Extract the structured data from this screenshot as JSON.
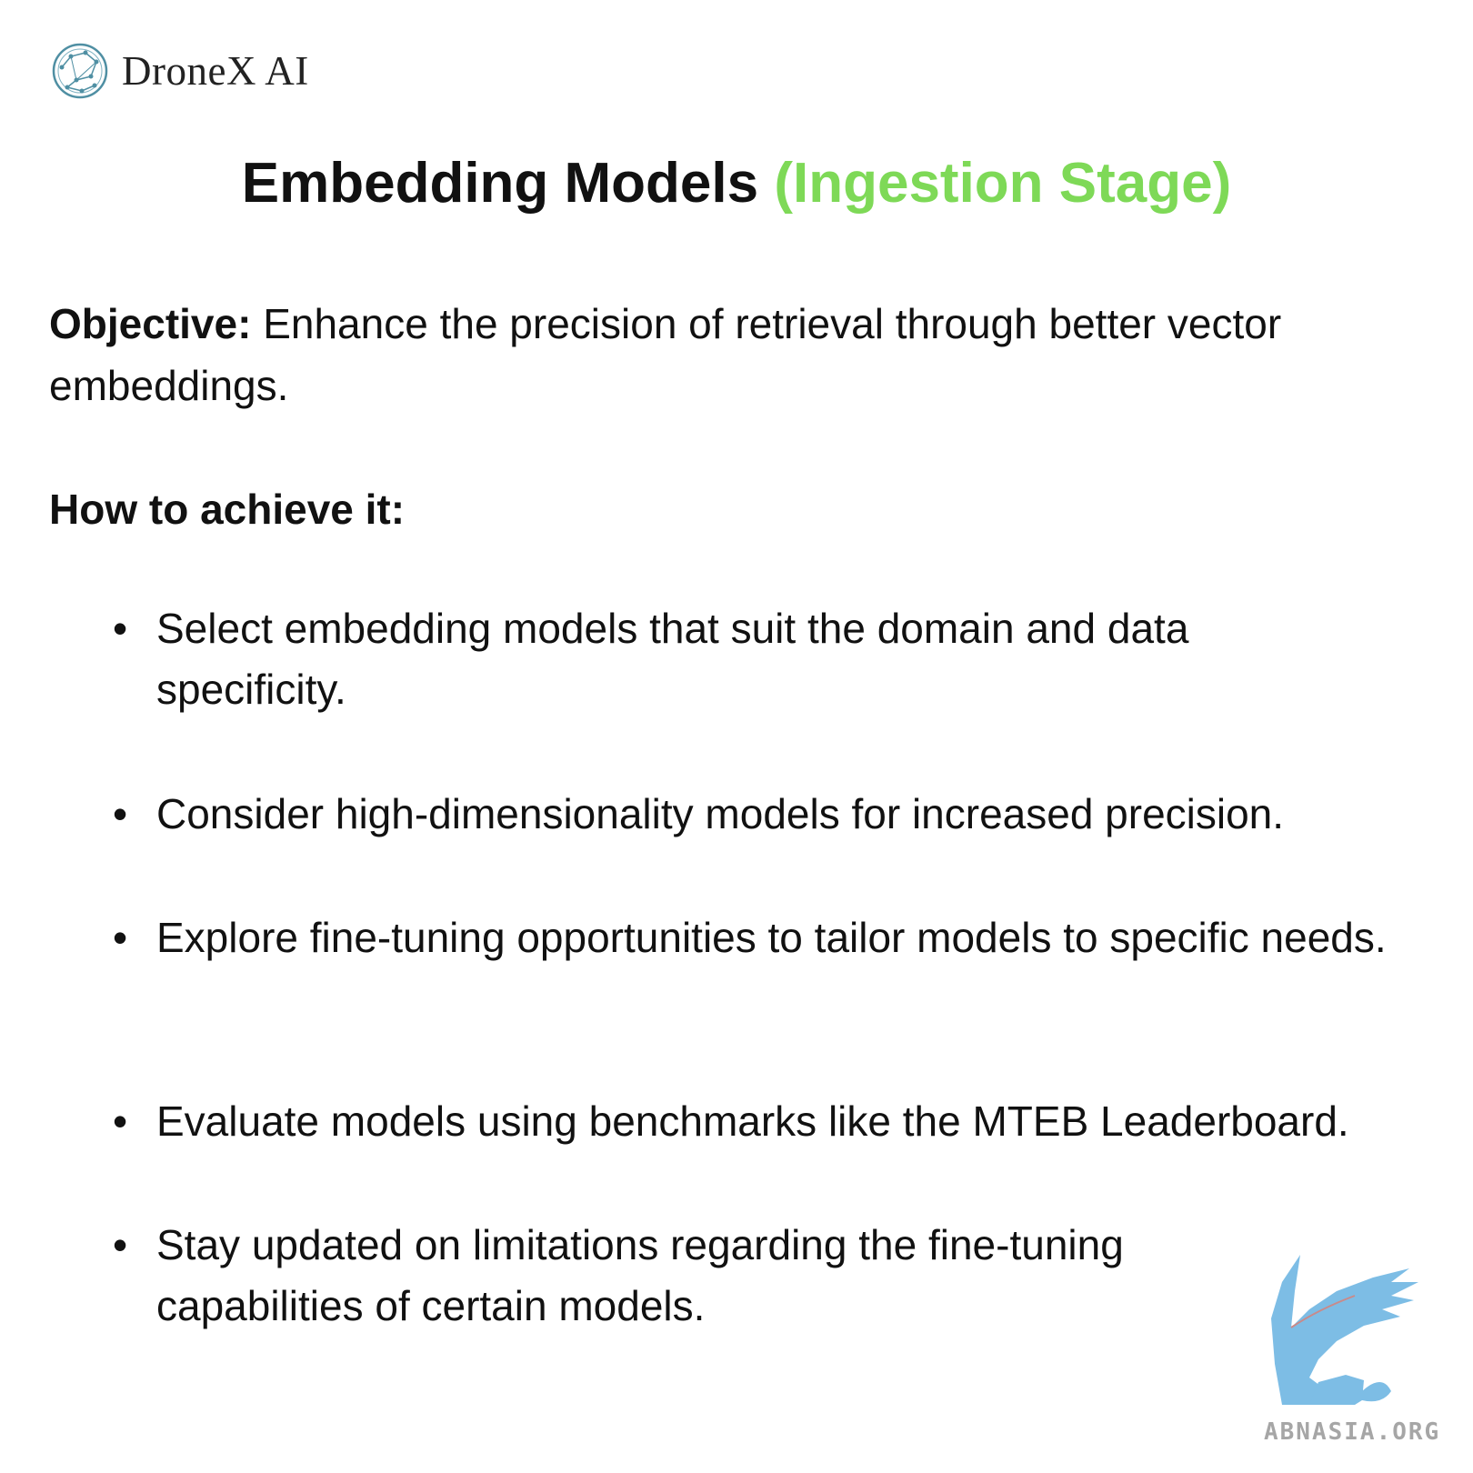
{
  "brand": {
    "name": "DroneX AI",
    "logo_icon": "constellation-circle-icon",
    "logo_color": "#4f8fa3"
  },
  "title": {
    "main": "Embedding Models",
    "accent": "(Ingestion Stage)",
    "accent_color": "#7ed957"
  },
  "objective": {
    "label": "Objective:",
    "text": "Enhance the precision of retrieval through better vector embeddings."
  },
  "how_to": {
    "heading": "How to achieve it:",
    "bullet_glyph": "•",
    "items": [
      "Select embedding models that suit the domain and data specificity.",
      "Consider high-dimensionality models for increased precision.",
      "Explore fine-tuning opportunities to tailor models to specific needs.",
      "Evaluate models using benchmarks like the MTEB Leaderboard.",
      "Stay updated on limitations regarding the fine-tuning capabilities of certain models."
    ]
  },
  "watermark": {
    "text": "ABNASIA.ORG",
    "icon": "griffin-watermark-icon",
    "color": "#6fb6e3"
  }
}
